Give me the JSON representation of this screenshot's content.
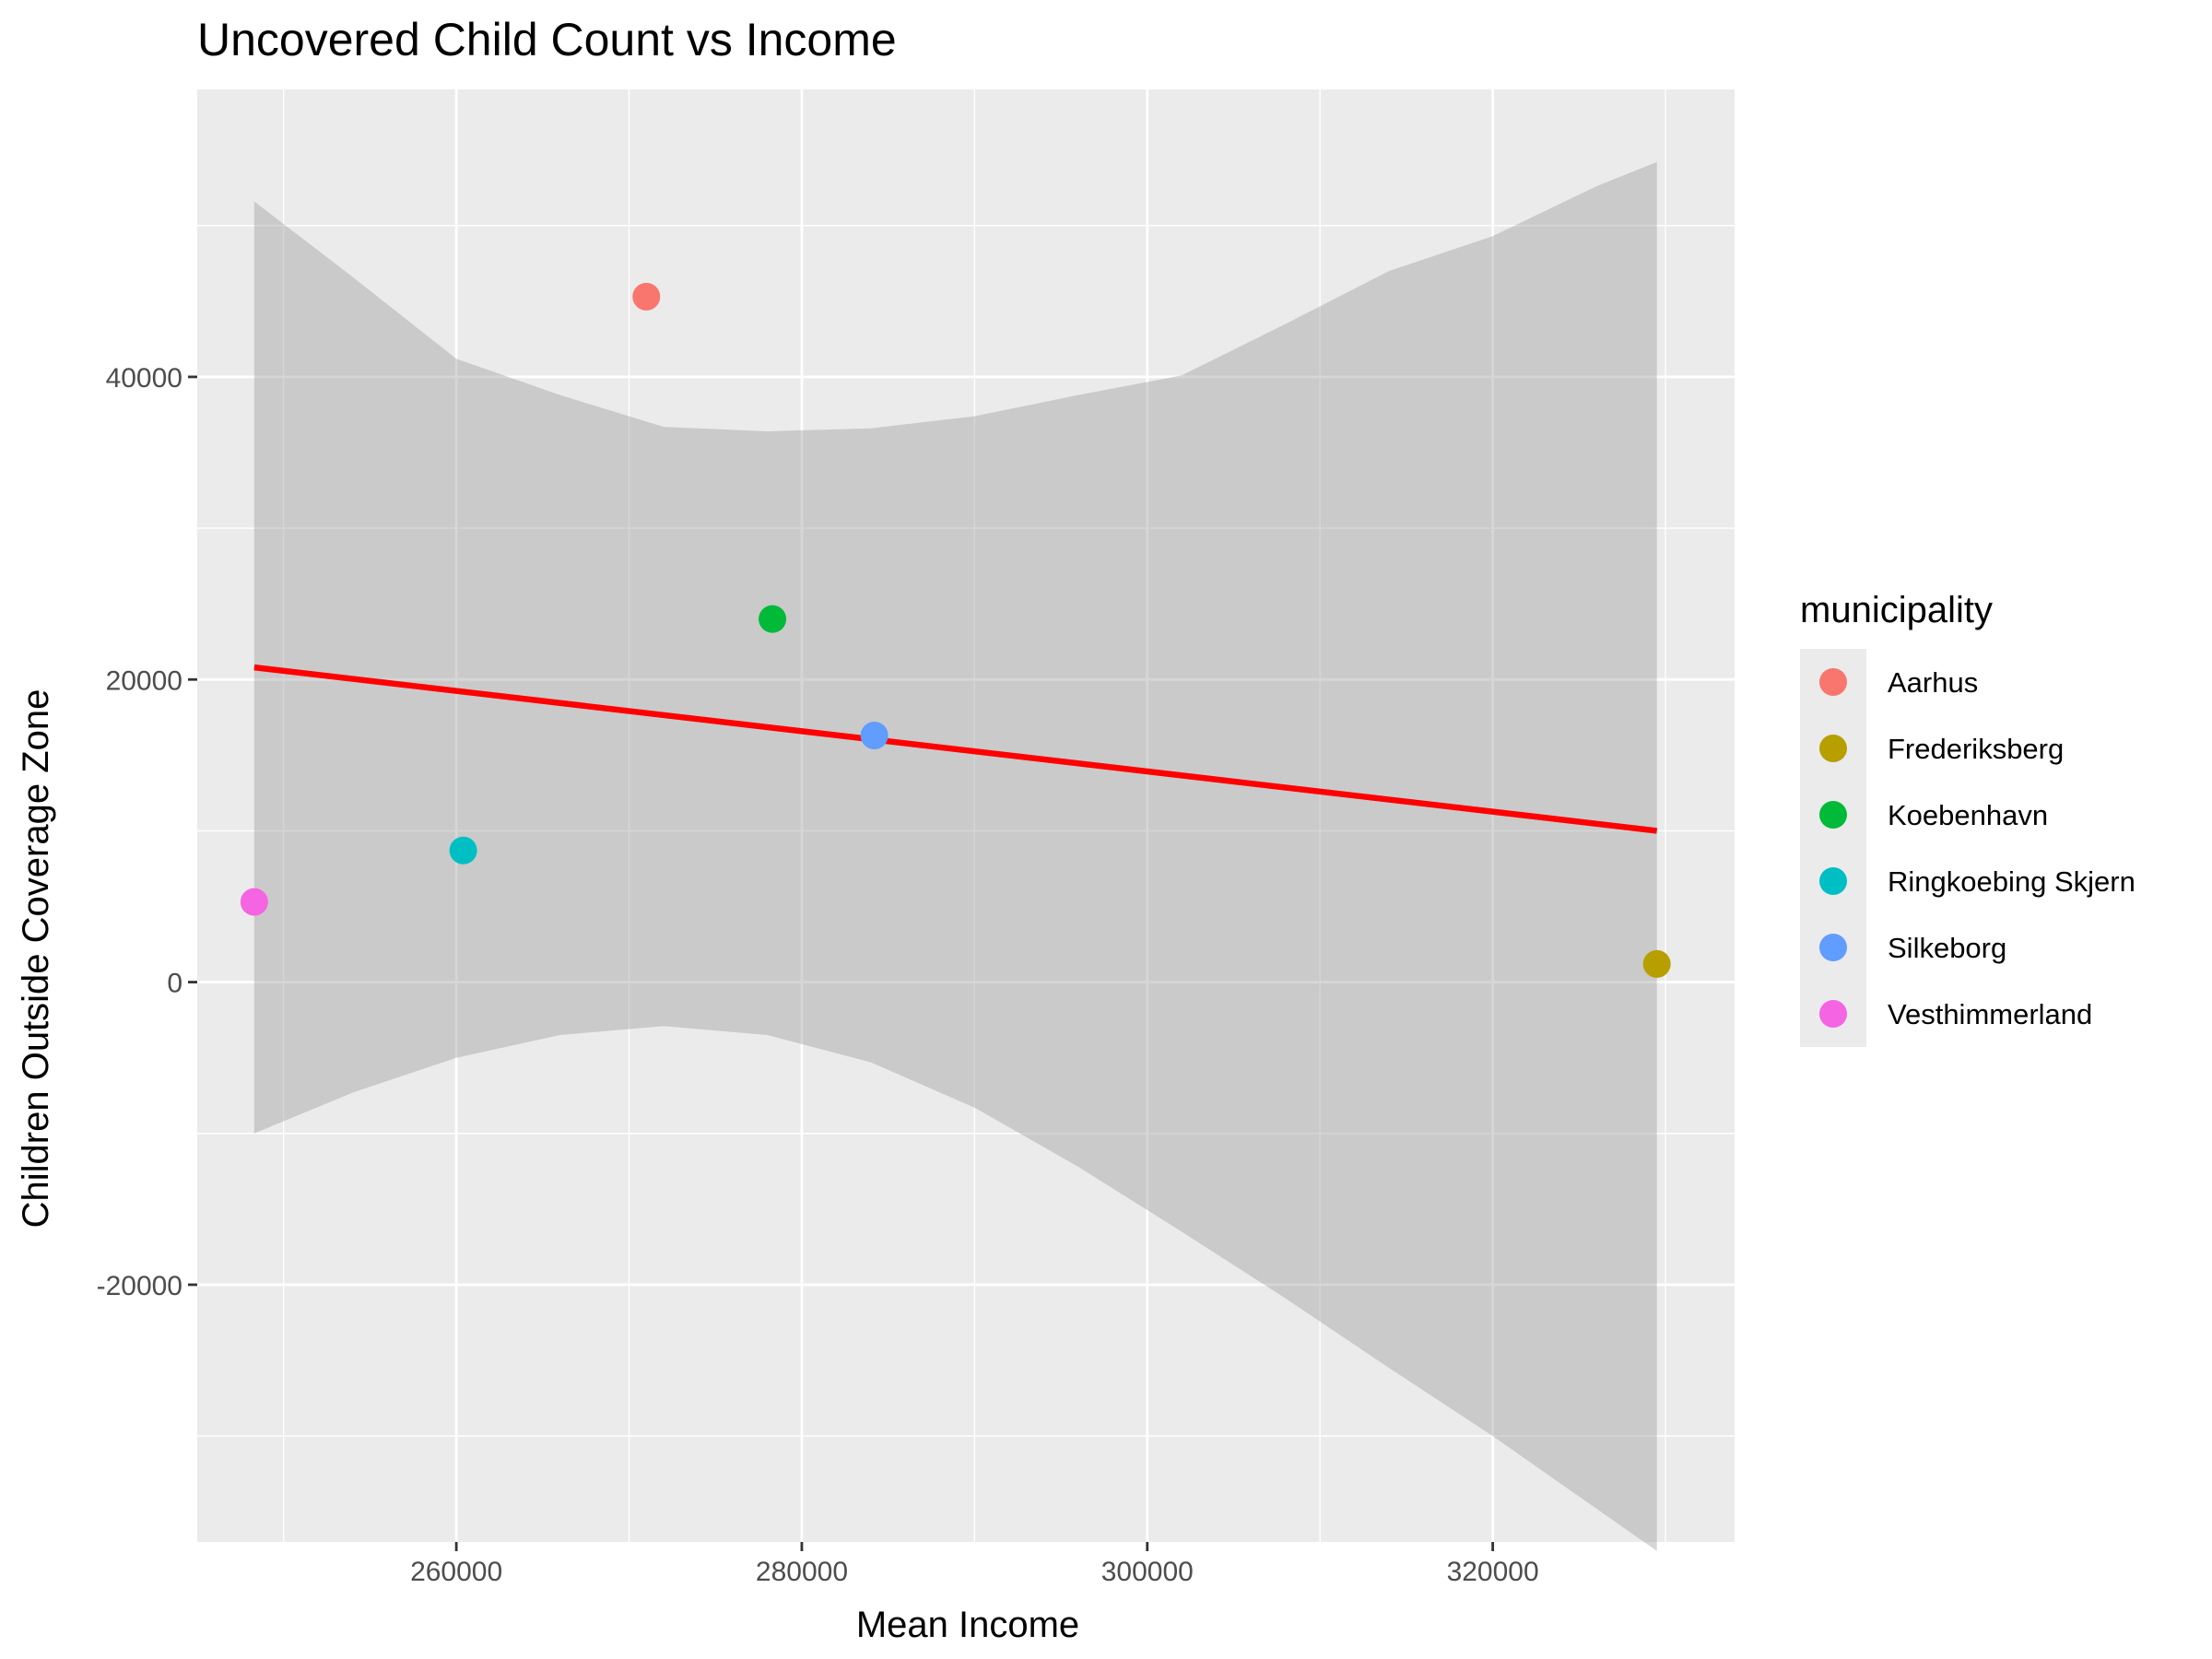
{
  "chart_data": {
    "type": "scatter",
    "title": "Uncovered Child Count vs Income",
    "xlabel": "Mean Income",
    "ylabel": "Children Outside Coverage Zone",
    "xlim": [
      245000,
      334000
    ],
    "ylim": [
      -37000,
      59000
    ],
    "x_ticks": [
      260000,
      280000,
      300000,
      320000
    ],
    "x_tick_labels": [
      "260000",
      "280000",
      "300000",
      "320000"
    ],
    "y_ticks": [
      -20000,
      0,
      20000,
      40000
    ],
    "y_tick_labels": [
      "-20000",
      "0",
      "20000",
      "40000"
    ],
    "grid": true,
    "legend": {
      "title": "municipality",
      "position": "right"
    },
    "points": [
      {
        "name": "Aarhus",
        "x": 271000,
        "y": 45300,
        "color": "#F8766D"
      },
      {
        "name": "Frederiksberg",
        "x": 329500,
        "y": 1200,
        "color": "#B79F00"
      },
      {
        "name": "Koebenhavn",
        "x": 278300,
        "y": 24000,
        "color": "#00BA38"
      },
      {
        "name": "Ringkoebing Skjern",
        "x": 260400,
        "y": 8700,
        "color": "#00BFC4"
      },
      {
        "name": "Silkeborg",
        "x": 284200,
        "y": 16300,
        "color": "#619CFF"
      },
      {
        "name": "Vesthimmerland",
        "x": 248300,
        "y": 5300,
        "color": "#F564E3"
      }
    ],
    "regression": {
      "method": "linear",
      "color": "#FF0000",
      "x": [
        248300,
        329500
      ],
      "y": [
        20800,
        10000
      ]
    },
    "confidence_band": {
      "color": "#999999",
      "opacity": 0.4,
      "x": [
        248300,
        254000,
        260000,
        266000,
        272000,
        278000,
        284000,
        290000,
        296000,
        302000,
        308000,
        314000,
        320000,
        326000,
        329500
      ],
      "lower": [
        -10000,
        -7300,
        -5000,
        -3500,
        -2900,
        -3500,
        -5300,
        -8300,
        -12200,
        -16500,
        -20900,
        -25500,
        -30000,
        -34800,
        -37600
      ],
      "upper": [
        51600,
        46600,
        41200,
        38800,
        36700,
        36400,
        36600,
        37400,
        38800,
        40100,
        43500,
        47000,
        49300,
        52600,
        54200
      ]
    }
  }
}
